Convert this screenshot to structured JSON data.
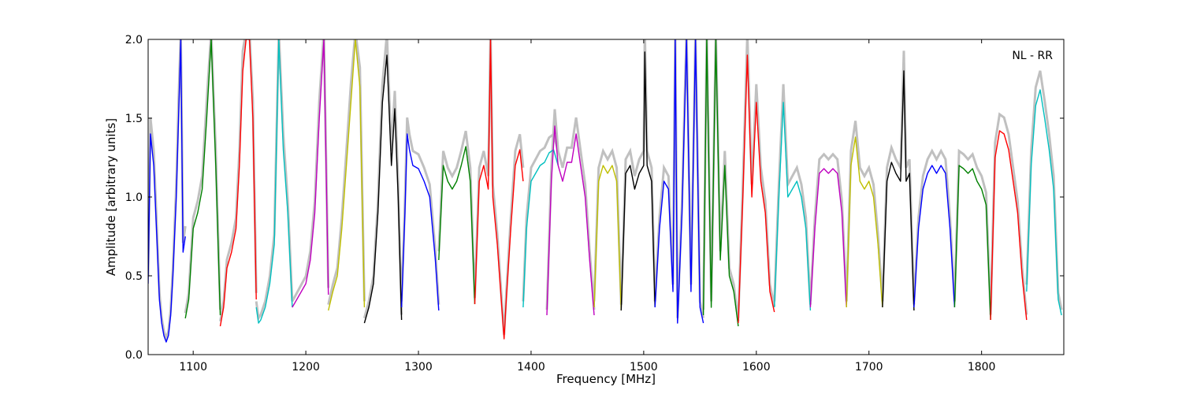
{
  "chart_data": {
    "type": "line",
    "annotation": "NL - RR",
    "xlabel": "Frequency [MHz]",
    "ylabel": "Amplitude [arbitrary units]",
    "xlim": [
      1060,
      1873
    ],
    "ylim": [
      0.0,
      2.0
    ],
    "xticks": [
      1100,
      1200,
      1300,
      1400,
      1500,
      1600,
      1700,
      1800
    ],
    "yticks": [
      0.0,
      0.5,
      1.0,
      1.5,
      2.0
    ],
    "ytick_labels": [
      "0.0",
      "0.5",
      "1.0",
      "1.5",
      "2.0"
    ],
    "grid": false,
    "colors": {
      "background_trace": "#c0c0c0",
      "b": "#0000ff",
      "g": "#008000",
      "r": "#ff0000",
      "c": "#00bfbf",
      "m": "#bf00bf",
      "y": "#bfbf00",
      "k": "#000000"
    },
    "series": [
      {
        "color": "b",
        "x": [
          1060,
          1062,
          1065,
          1068,
          1070,
          1072,
          1074,
          1076,
          1078,
          1080,
          1082,
          1085,
          1087,
          1089,
          1091,
          1093
        ],
        "y": [
          0.45,
          1.4,
          1.2,
          0.7,
          0.35,
          0.2,
          0.12,
          0.08,
          0.12,
          0.25,
          0.5,
          1.0,
          1.5,
          2.0,
          0.65,
          0.75
        ]
      },
      {
        "color": "g",
        "x": [
          1093,
          1096,
          1100,
          1104,
          1108,
          1112,
          1116,
          1120,
          1124
        ],
        "y": [
          0.23,
          0.35,
          0.8,
          0.9,
          1.05,
          1.5,
          2.0,
          1.2,
          0.25
        ]
      },
      {
        "color": "r",
        "x": [
          1124,
          1127,
          1130,
          1134,
          1138,
          1141,
          1144,
          1147,
          1150,
          1153,
          1156
        ],
        "y": [
          0.18,
          0.3,
          0.55,
          0.65,
          0.8,
          1.2,
          1.8,
          2.0,
          2.0,
          1.5,
          0.35
        ]
      },
      {
        "color": "c",
        "x": [
          1156,
          1158,
          1160,
          1164,
          1168,
          1172,
          1176,
          1180,
          1184,
          1188
        ],
        "y": [
          0.3,
          0.2,
          0.22,
          0.3,
          0.45,
          0.7,
          2.0,
          1.3,
          0.9,
          0.3
        ]
      },
      {
        "color": "m",
        "x": [
          1188,
          1192,
          1196,
          1200,
          1204,
          1208,
          1212,
          1216,
          1220
        ],
        "y": [
          0.3,
          0.35,
          0.4,
          0.45,
          0.6,
          0.9,
          1.5,
          2.0,
          0.38
        ]
      },
      {
        "color": "y",
        "x": [
          1220,
          1224,
          1228,
          1232,
          1236,
          1240,
          1244,
          1248,
          1252
        ],
        "y": [
          0.28,
          0.4,
          0.5,
          0.8,
          1.2,
          1.6,
          2.0,
          1.7,
          0.3
        ]
      },
      {
        "color": "k",
        "x": [
          1252,
          1256,
          1260,
          1264,
          1268,
          1272,
          1276,
          1279,
          1282,
          1285
        ],
        "y": [
          0.2,
          0.3,
          0.45,
          0.9,
          1.6,
          1.9,
          1.2,
          1.56,
          1.0,
          0.22
        ]
      },
      {
        "color": "b",
        "x": [
          1285,
          1288,
          1290,
          1292,
          1295,
          1300,
          1305,
          1310,
          1315,
          1318
        ],
        "y": [
          0.3,
          0.9,
          1.4,
          1.3,
          1.2,
          1.18,
          1.1,
          1.0,
          0.6,
          0.28
        ]
      },
      {
        "color": "g",
        "x": [
          1318,
          1322,
          1326,
          1330,
          1334,
          1338,
          1342,
          1346,
          1350
        ],
        "y": [
          0.6,
          1.2,
          1.1,
          1.05,
          1.1,
          1.2,
          1.32,
          1.1,
          0.32
        ]
      },
      {
        "color": "r",
        "x": [
          1350,
          1354,
          1358,
          1362,
          1364,
          1366,
          1370,
          1374,
          1376,
          1378,
          1382,
          1386,
          1390,
          1393
        ],
        "y": [
          0.32,
          1.1,
          1.2,
          1.05,
          2.0,
          1.0,
          0.7,
          0.3,
          0.1,
          0.35,
          0.8,
          1.2,
          1.3,
          1.1
        ]
      },
      {
        "color": "c",
        "x": [
          1393,
          1396,
          1400,
          1404,
          1408,
          1412,
          1416,
          1420,
          1424
        ],
        "y": [
          0.3,
          0.8,
          1.1,
          1.15,
          1.2,
          1.22,
          1.28,
          1.3,
          1.2
        ]
      },
      {
        "color": "m",
        "x": [
          1414,
          1418,
          1421,
          1424,
          1428,
          1432,
          1436,
          1440,
          1444,
          1448,
          1452,
          1456
        ],
        "y": [
          0.25,
          1.1,
          1.45,
          1.2,
          1.1,
          1.22,
          1.22,
          1.4,
          1.2,
          1.0,
          0.6,
          0.25
        ]
      },
      {
        "color": "y",
        "x": [
          1456,
          1460,
          1464,
          1468,
          1472,
          1476,
          1480
        ],
        "y": [
          0.3,
          1.1,
          1.2,
          1.15,
          1.2,
          1.1,
          0.28
        ]
      },
      {
        "color": "k",
        "x": [
          1480,
          1484,
          1488,
          1492,
          1496,
          1500,
          1501,
          1503,
          1507,
          1510
        ],
        "y": [
          0.28,
          1.15,
          1.2,
          1.05,
          1.15,
          1.2,
          1.92,
          1.2,
          1.1,
          0.3
        ]
      },
      {
        "color": "b",
        "x": [
          1510,
          1514,
          1518,
          1522,
          1526,
          1528,
          1530,
          1534,
          1538,
          1542,
          1546,
          1550,
          1553
        ],
        "y": [
          0.3,
          0.8,
          1.1,
          1.05,
          0.4,
          2.0,
          0.2,
          0.9,
          2.0,
          0.4,
          2.0,
          0.3,
          0.2
        ]
      },
      {
        "color": "g",
        "x": [
          1553,
          1556,
          1560,
          1564,
          1568,
          1572,
          1576,
          1580,
          1584
        ],
        "y": [
          0.25,
          2.0,
          0.3,
          2.0,
          0.6,
          1.2,
          0.5,
          0.4,
          0.18
        ]
      },
      {
        "color": "r",
        "x": [
          1584,
          1588,
          1592,
          1596,
          1600,
          1604,
          1608,
          1612,
          1616
        ],
        "y": [
          0.2,
          1.0,
          1.9,
          1.0,
          1.6,
          1.1,
          0.9,
          0.4,
          0.27
        ]
      },
      {
        "color": "c",
        "x": [
          1616,
          1620,
          1624,
          1628,
          1632,
          1636,
          1640,
          1644,
          1648
        ],
        "y": [
          0.3,
          1.0,
          1.6,
          1.0,
          1.05,
          1.1,
          1.0,
          0.8,
          0.28
        ]
      },
      {
        "color": "m",
        "x": [
          1648,
          1652,
          1656,
          1660,
          1664,
          1668,
          1672,
          1676,
          1680
        ],
        "y": [
          0.3,
          0.8,
          1.15,
          1.18,
          1.15,
          1.18,
          1.15,
          0.9,
          0.3
        ]
      },
      {
        "color": "y",
        "x": [
          1680,
          1684,
          1688,
          1692,
          1696,
          1700,
          1704,
          1708,
          1712
        ],
        "y": [
          0.3,
          1.2,
          1.38,
          1.1,
          1.05,
          1.1,
          1.0,
          0.7,
          0.3
        ]
      },
      {
        "color": "k",
        "x": [
          1712,
          1716,
          1720,
          1724,
          1728,
          1731,
          1733,
          1736,
          1740
        ],
        "y": [
          0.3,
          1.1,
          1.22,
          1.15,
          1.1,
          1.8,
          1.1,
          1.15,
          0.28
        ]
      },
      {
        "color": "b",
        "x": [
          1740,
          1744,
          1748,
          1752,
          1756,
          1760,
          1764,
          1768,
          1772,
          1776
        ],
        "y": [
          0.3,
          0.8,
          1.05,
          1.15,
          1.2,
          1.15,
          1.2,
          1.15,
          0.8,
          0.3
        ]
      },
      {
        "color": "g",
        "x": [
          1776,
          1780,
          1784,
          1788,
          1792,
          1796,
          1800,
          1804,
          1808
        ],
        "y": [
          0.3,
          1.2,
          1.18,
          1.15,
          1.18,
          1.1,
          1.05,
          0.95,
          0.22
        ]
      },
      {
        "color": "r",
        "x": [
          1808,
          1812,
          1816,
          1820,
          1824,
          1828,
          1832,
          1836,
          1840
        ],
        "y": [
          0.22,
          1.25,
          1.42,
          1.4,
          1.3,
          1.1,
          0.9,
          0.5,
          0.22
        ]
      },
      {
        "color": "c",
        "x": [
          1840,
          1844,
          1848,
          1852,
          1856,
          1860,
          1864,
          1868,
          1871
        ],
        "y": [
          0.4,
          1.2,
          1.58,
          1.68,
          1.5,
          1.3,
          1.05,
          0.35,
          0.25
        ]
      }
    ]
  }
}
